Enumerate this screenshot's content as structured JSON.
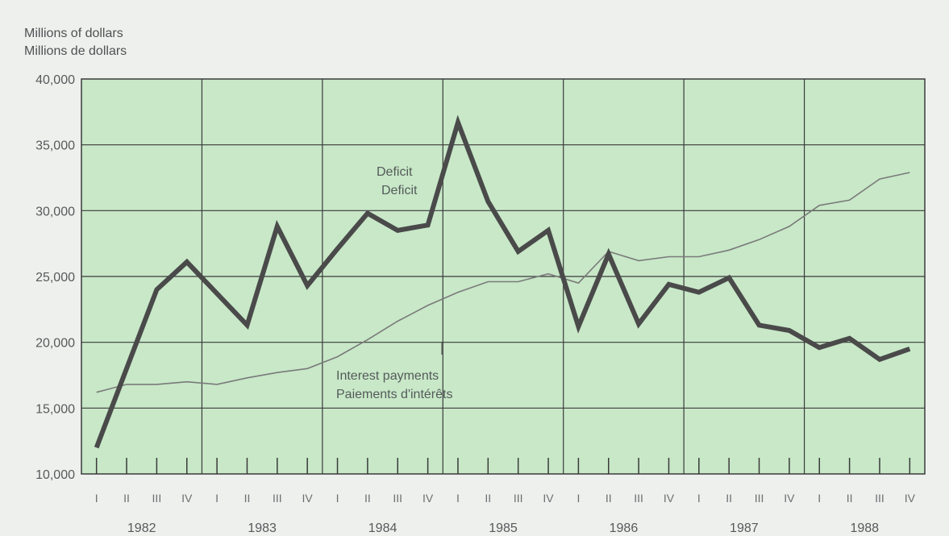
{
  "chart_data": {
    "type": "line",
    "ylabel": [
      "Millions of dollars",
      "Millions de dollars"
    ],
    "ylim": [
      10000,
      40000
    ],
    "yticks": [
      "10,000",
      "15,000",
      "20,000",
      "25,000",
      "30,000",
      "35,000",
      "40,000"
    ],
    "ytick_values": [
      10000,
      15000,
      20000,
      25000,
      30000,
      35000,
      40000
    ],
    "quarter_labels": [
      "I",
      "II",
      "III",
      "IV"
    ],
    "years": [
      "1982",
      "1983",
      "1984",
      "1985",
      "1986",
      "1987",
      "1988"
    ],
    "grid": true,
    "background_color": "#c8e8c8",
    "series": [
      {
        "name": "Deficit / Deficit",
        "color": "#4a4a4a",
        "width": "thick",
        "values": [
          12000,
          18000,
          24000,
          26100,
          23700,
          21300,
          28800,
          24300,
          27100,
          29800,
          28500,
          28900,
          36700,
          30700,
          26900,
          28500,
          21200,
          26700,
          21400,
          24400,
          23800,
          24900,
          21300,
          20900,
          19600,
          20300,
          18700,
          19500
        ]
      },
      {
        "name": "Interest payments / Paiements d'intérêts",
        "color": "#7a7a7a",
        "width": "thin",
        "values": [
          16200,
          16800,
          16800,
          17000,
          16800,
          17300,
          17700,
          18000,
          18900,
          20200,
          21600,
          22800,
          23800,
          24600,
          24600,
          25200,
          24500,
          26900,
          26200,
          26500,
          26500,
          27000,
          27800,
          28800,
          30400,
          30800,
          32400,
          32900
        ]
      }
    ],
    "annotations": {
      "deficit": [
        "Deficit",
        "Deficit"
      ],
      "interest": [
        "Interest payments",
        "Paiements d'intérêts"
      ]
    }
  }
}
